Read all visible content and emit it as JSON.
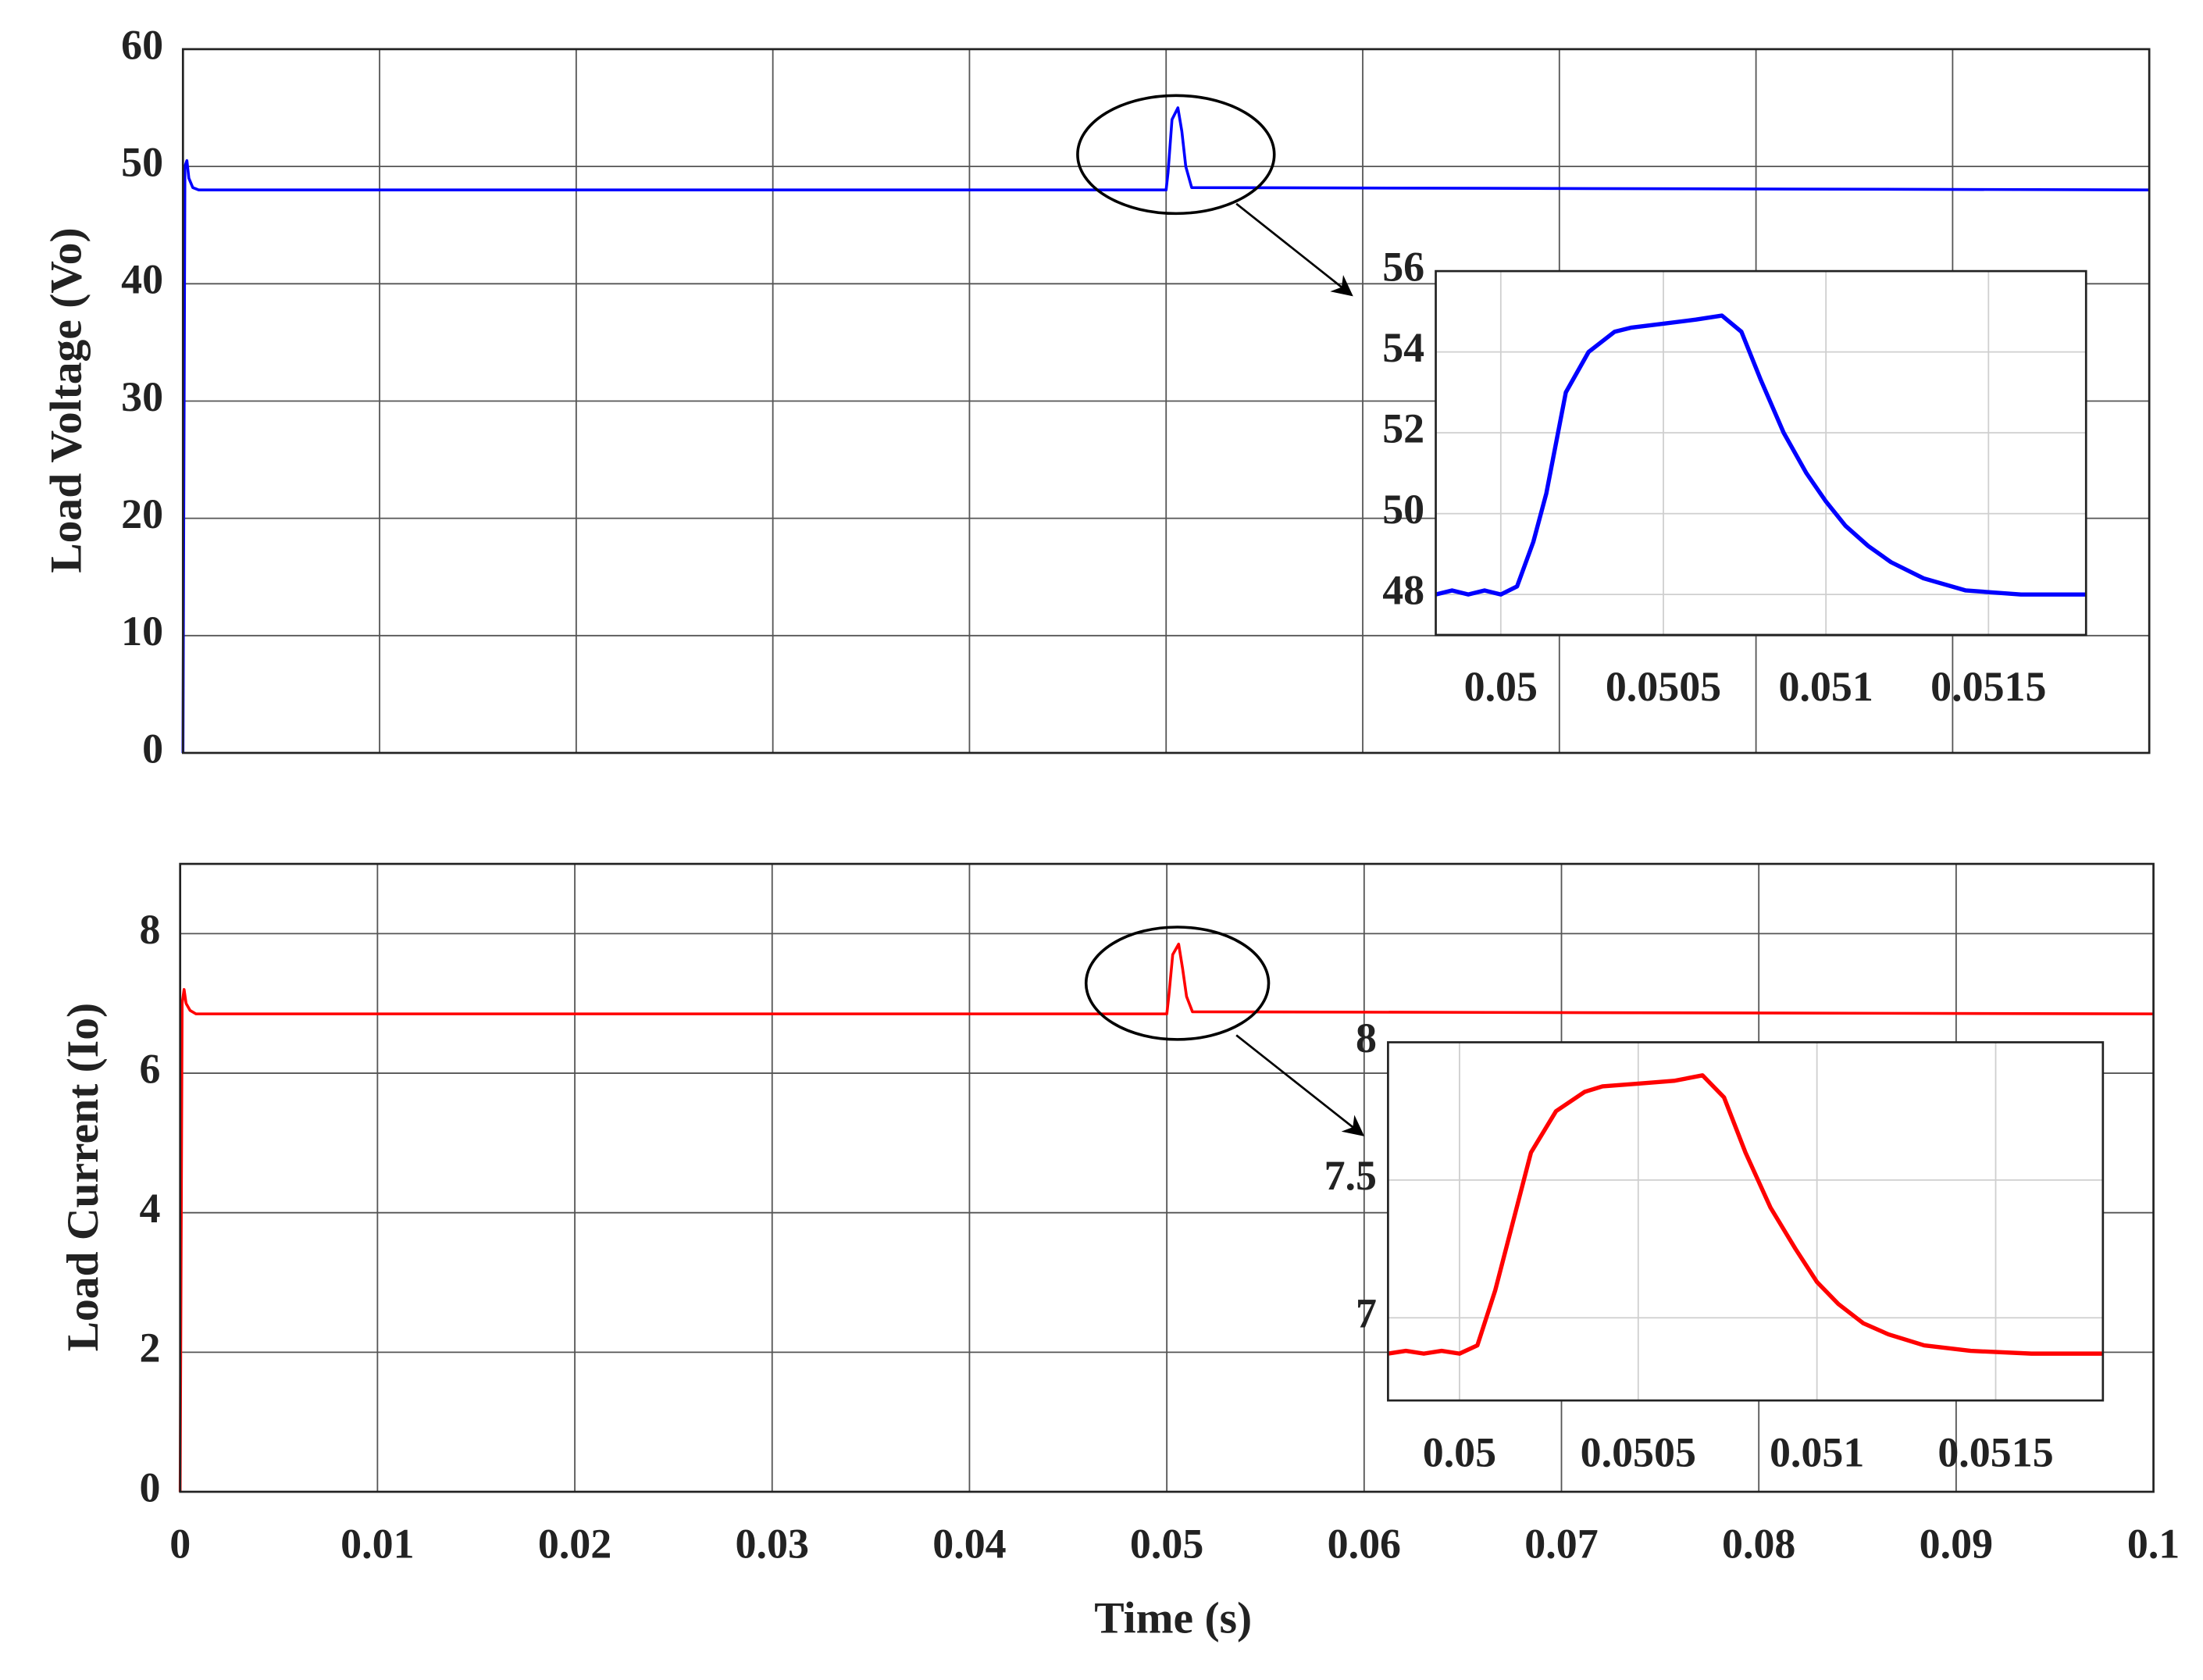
{
  "chart_data": [
    {
      "type": "line",
      "ylabel": "Load Voltage (Vo)",
      "x": [
        0,
        0.0001,
        0.0002,
        0.0003,
        0.0005,
        0.0008,
        0.05,
        0.0501,
        0.0503,
        0.0506,
        0.0508,
        0.051,
        0.0513,
        0.1
      ],
      "series": [
        {
          "color": "#0000ff",
          "values": [
            0,
            50,
            50.5,
            49,
            48.2,
            48,
            48,
            49.5,
            54,
            55,
            53,
            50,
            48.2,
            48
          ]
        }
      ],
      "xlim": [
        0,
        0.1
      ],
      "xticks": [
        0,
        0.01,
        0.02,
        0.03,
        0.04,
        0.05,
        0.06,
        0.07,
        0.08,
        0.09,
        0.1
      ],
      "ylim": [
        0,
        60
      ],
      "yticks": [
        0,
        10,
        20,
        30,
        40,
        50,
        60
      ],
      "grid": true
    },
    {
      "type": "line",
      "ylabel": "Load Current (Io)",
      "xlabel": "Time (s)",
      "x": [
        0,
        0.0001,
        0.0002,
        0.0003,
        0.0005,
        0.0008,
        0.05,
        0.0501,
        0.0503,
        0.0506,
        0.0508,
        0.051,
        0.0513,
        0.1
      ],
      "series": [
        {
          "color": "#ff0000",
          "values": [
            0,
            7,
            7.2,
            7.0,
            6.9,
            6.85,
            6.85,
            7.1,
            7.7,
            7.85,
            7.5,
            7.1,
            6.88,
            6.85
          ]
        }
      ],
      "xlim": [
        0,
        0.1
      ],
      "xticks": [
        0,
        0.01,
        0.02,
        0.03,
        0.04,
        0.05,
        0.06,
        0.07,
        0.08,
        0.09,
        0.1
      ],
      "ylim": [
        0,
        9
      ],
      "yticks": [
        0,
        2,
        4,
        6,
        8
      ],
      "grid": true
    },
    {
      "type": "line",
      "x": [
        0.0498,
        0.04985,
        0.0499,
        0.04995,
        0.05,
        0.05005,
        0.0501,
        0.05014,
        0.0502,
        0.05027,
        0.05035,
        0.0504,
        0.0505,
        0.0506,
        0.05068,
        0.05074,
        0.0508,
        0.05087,
        0.05094,
        0.051,
        0.05106,
        0.05113,
        0.0512,
        0.0513,
        0.05143,
        0.0516,
        0.0518
      ],
      "series": [
        {
          "color": "#0000ff",
          "values": [
            48,
            48.1,
            48,
            48.1,
            48,
            48.2,
            49.3,
            50.5,
            53,
            54,
            54.5,
            54.6,
            54.7,
            54.8,
            54.9,
            54.5,
            53.3,
            52,
            51,
            50.3,
            49.7,
            49.2,
            48.8,
            48.4,
            48.1,
            48,
            48
          ]
        }
      ],
      "xlim": [
        0.0498,
        0.0518
      ],
      "xticks": [
        0.05,
        0.0505,
        0.051,
        0.0515
      ],
      "ylim": [
        47,
        56
      ],
      "yticks": [
        48,
        50,
        52,
        54,
        56
      ],
      "grid": true
    },
    {
      "type": "line",
      "x": [
        0.0498,
        0.04985,
        0.0499,
        0.04995,
        0.05,
        0.05005,
        0.0501,
        0.05014,
        0.0502,
        0.05027,
        0.05035,
        0.0504,
        0.0505,
        0.0506,
        0.05068,
        0.05074,
        0.0508,
        0.05087,
        0.05094,
        0.051,
        0.05106,
        0.05113,
        0.0512,
        0.0513,
        0.05143,
        0.0516,
        0.0518
      ],
      "series": [
        {
          "color": "#ff0000",
          "values": [
            6.87,
            6.88,
            6.87,
            6.88,
            6.87,
            6.9,
            7.1,
            7.3,
            7.6,
            7.75,
            7.82,
            7.84,
            7.85,
            7.86,
            7.88,
            7.8,
            7.6,
            7.4,
            7.25,
            7.13,
            7.05,
            6.98,
            6.94,
            6.9,
            6.88,
            6.87,
            6.87
          ]
        }
      ],
      "xlim": [
        0.0498,
        0.0518
      ],
      "xticks": [
        0.05,
        0.0505,
        0.051,
        0.0515
      ],
      "ylim": [
        6.7,
        8
      ],
      "yticks": [
        7,
        7.5,
        8
      ],
      "grid": true
    }
  ]
}
